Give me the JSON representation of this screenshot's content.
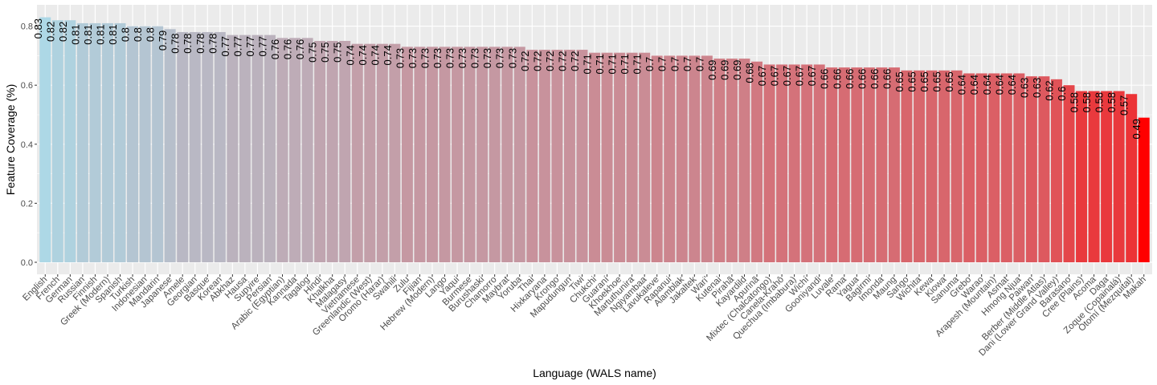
{
  "chart_data": {
    "type": "bar",
    "title": "",
    "xlabel": "Language (WALS name)",
    "ylabel": "Feature Coverage (%)",
    "ylim": [
      0,
      0.83
    ],
    "yticks": [
      "0.0",
      "0.2",
      "0.4",
      "0.6",
      "0.8"
    ],
    "grid": true,
    "legend": "none",
    "colors": {
      "low_end": "#add8e6",
      "high_end": "#ff0000",
      "panel": "#ebebeb",
      "grid": "#ffffff"
    },
    "categories": [
      "English",
      "French",
      "German",
      "Russian",
      "Finnish",
      "Greek (Modern)",
      "Spanish",
      "Turkish",
      "Indonesian",
      "Mandarin",
      "Japanese",
      "Amele",
      "Georgian",
      "Basque",
      "Korean",
      "Abkhaz",
      "Hausa",
      "Supyire",
      "Persian",
      "Arabic (Egyptian)",
      "Kannada",
      "Tagalog",
      "Hindi",
      "Khalkha",
      "Malagasy",
      "Vietnamese",
      "Greenlandic (West)",
      "Oromo (Harar)",
      "Swahili",
      "Zulu",
      "Fijian",
      "Hebrew (Modern)",
      "Lango",
      "Yaqui",
      "Burmese",
      "Burushaski",
      "Chamorro",
      "Maybrat",
      "Yoruba",
      "Thai",
      "Hixkaryana",
      "Krongo",
      "Mapudungun",
      "Tiwi",
      "Chukchi",
      "Guaraní",
      "Khoekhoe",
      "Martuthunira",
      "Ngiyambaa",
      "Lavukaleve",
      "Rapanui",
      "Alamblak",
      "Jakaltek",
      "Wari'",
      "Kutenai",
      "Pirahã",
      "Kayardild",
      "Apurinã",
      "Mixtec (Chalcatongo)",
      "Canela-Krahô",
      "Quechua (Imbabura)",
      "Wichí",
      "Gooniyandi",
      "Luvale",
      "Rama",
      "Yagua",
      "Bagirmi",
      "Imonda",
      "Maung",
      "Sango",
      "Wichita",
      "Kewa",
      "Kiowa",
      "Sanuma",
      "Grebo",
      "Warao",
      "Arapesh (Mountain)",
      "Asmat",
      "Hmong Njua",
      "Paiwan",
      "Berber (Middle Atlas)",
      "Dani (Lower Grand Valley)",
      "Barasano",
      "Cree (Plains)",
      "Acoma",
      "Daga",
      "Zoque (Copainalá)",
      "Otomí (Mezquital)",
      "Makah"
    ],
    "values": [
      0.83,
      0.82,
      0.82,
      0.81,
      0.81,
      0.81,
      0.81,
      0.8,
      0.8,
      0.8,
      0.79,
      0.78,
      0.78,
      0.78,
      0.78,
      0.77,
      0.77,
      0.77,
      0.77,
      0.76,
      0.76,
      0.76,
      0.75,
      0.75,
      0.75,
      0.74,
      0.74,
      0.74,
      0.74,
      0.73,
      0.73,
      0.73,
      0.73,
      0.73,
      0.73,
      0.73,
      0.73,
      0.73,
      0.73,
      0.72,
      0.72,
      0.72,
      0.72,
      0.72,
      0.71,
      0.71,
      0.71,
      0.71,
      0.71,
      0.7,
      0.7,
      0.7,
      0.7,
      0.7,
      0.69,
      0.69,
      0.69,
      0.68,
      0.67,
      0.67,
      0.67,
      0.67,
      0.67,
      0.66,
      0.66,
      0.66,
      0.66,
      0.66,
      0.66,
      0.65,
      0.65,
      0.65,
      0.65,
      0.65,
      0.64,
      0.64,
      0.64,
      0.64,
      0.64,
      0.63,
      0.63,
      0.62,
      0.6,
      0.58,
      0.58,
      0.58,
      0.58,
      0.57,
      0.49
    ],
    "data_labels": [
      "0.83",
      "0.82",
      "0.82",
      "0.81",
      "0.81",
      "0.81",
      "0.81",
      "0.8",
      "0.8",
      "0.8",
      "0.79",
      "0.78",
      "0.78",
      "0.78",
      "0.78",
      "0.77",
      "0.77",
      "0.77",
      "0.77",
      "0.76",
      "0.76",
      "0.76",
      "0.75",
      "0.75",
      "0.75",
      "0.74",
      "0.74",
      "0.74",
      "0.74",
      "0.73",
      "0.73",
      "0.73",
      "0.73",
      "0.73",
      "0.73",
      "0.73",
      "0.73",
      "0.73",
      "0.73",
      "0.72",
      "0.72",
      "0.72",
      "0.72",
      "0.72",
      "0.71",
      "0.71",
      "0.71",
      "0.71",
      "0.71",
      "0.7",
      "0.7",
      "0.7",
      "0.7",
      "0.7",
      "0.69",
      "0.69",
      "0.69",
      "0.68",
      "0.67",
      "0.67",
      "0.67",
      "0.67",
      "0.67",
      "0.66",
      "0.66",
      "0.66",
      "0.66",
      "0.66",
      "0.66",
      "0.65",
      "0.65",
      "0.65",
      "0.65",
      "0.65",
      "0.64",
      "0.64",
      "0.64",
      "0.64",
      "0.64",
      "0.63",
      "0.63",
      "0.62",
      "0.6",
      "0.58",
      "0.58",
      "0.58",
      "0.58",
      "0.57",
      "0.49"
    ]
  }
}
